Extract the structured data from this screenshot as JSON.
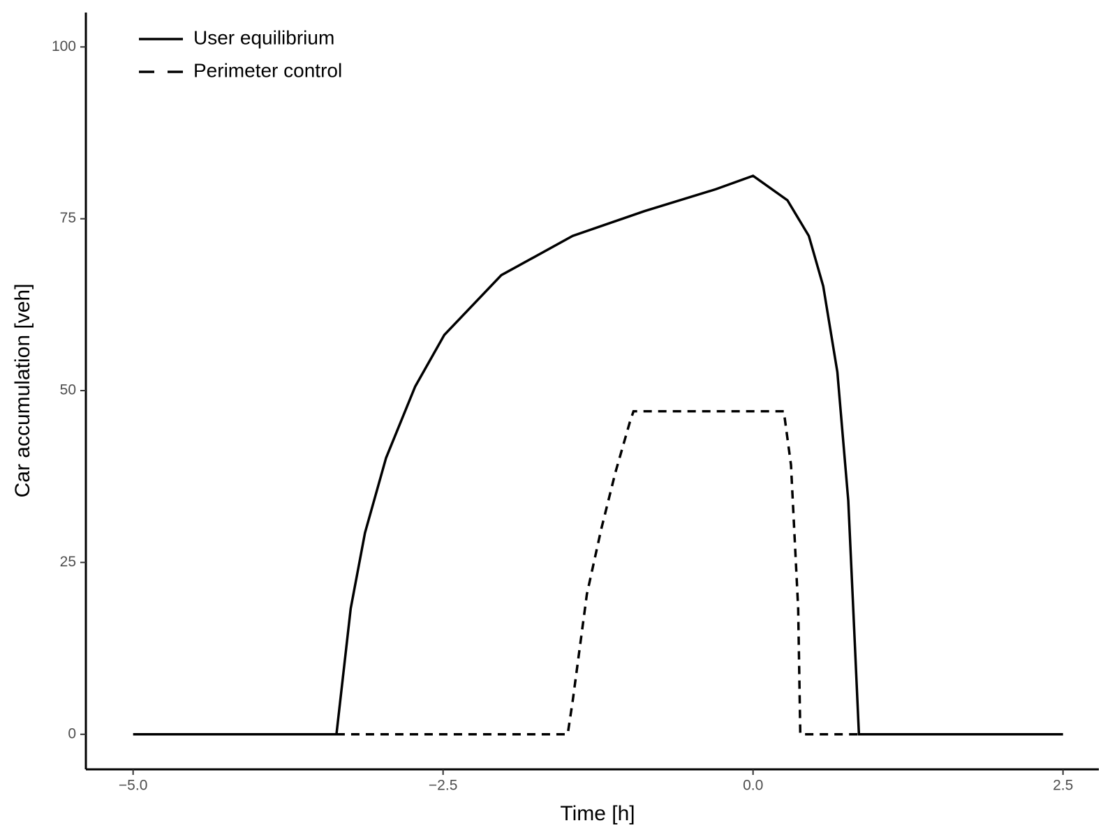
{
  "chart_data": {
    "type": "line",
    "x_label": "Time [h]",
    "y_label": "Car accumulation [veh]",
    "xlim": [
      -5.381,
      2.789
    ],
    "ylim": [
      -5.1,
      105
    ],
    "xticks": [
      {
        "value": -5,
        "label": "−5.0"
      },
      {
        "value": -2.5,
        "label": "−2.5"
      },
      {
        "value": 0,
        "label": "0.0"
      },
      2.5
    ],
    "yticks": [
      0,
      25,
      50,
      75,
      100
    ],
    "grid": false,
    "legend": "top-left",
    "series": [
      {
        "name": "User equilibrium",
        "color": "#000000",
        "dash": "solid",
        "x": [
          -5,
          -3.36,
          -3.245,
          -3.13,
          -2.96,
          -2.725,
          -2.49,
          -2.03,
          -1.455,
          -0.878,
          -0.3,
          0,
          0.277,
          0.45,
          0.566,
          0.68,
          0.768,
          0.808,
          0.854,
          2.5
        ],
        "values": [
          0,
          0,
          18.3,
          29.3,
          40.2,
          50.6,
          58.1,
          66.8,
          72.5,
          76.1,
          79.3,
          81.25,
          77.7,
          72.5,
          65.2,
          52.7,
          34,
          18.3,
          0,
          0
        ]
      },
      {
        "name": "Perimeter control",
        "color": "#000000",
        "dash": "dashed",
        "x": [
          -3.36,
          -1.495,
          -1.455,
          -1.34,
          -1.225,
          -1.11,
          -0.994,
          -0.964,
          0.248,
          0.306,
          0.364,
          0.381,
          0.854
        ],
        "values": [
          0,
          0,
          4.8,
          20.4,
          29.8,
          38.1,
          45.4,
          47,
          47,
          39.2,
          18.3,
          0,
          0
        ]
      }
    ]
  }
}
